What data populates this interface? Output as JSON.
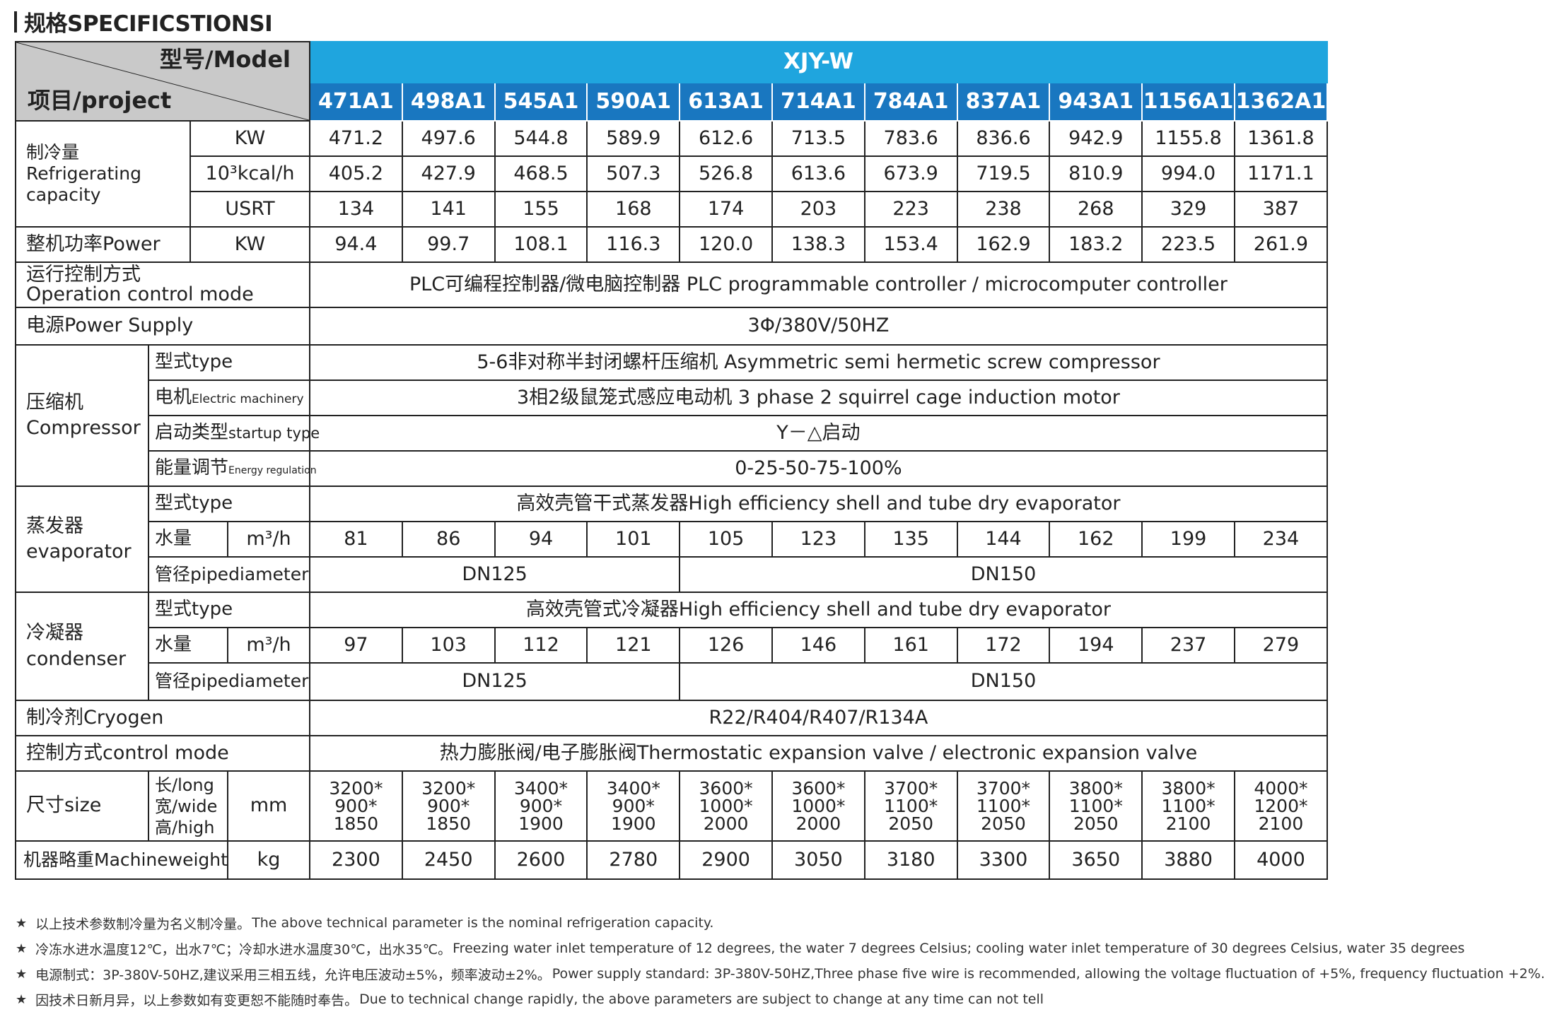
{
  "title": "规格SPECIFICSTIONSI",
  "header": {
    "model_label": "型号/Model",
    "project_label": "项目/project",
    "series": "XJY-W",
    "models": [
      "471A1",
      "498A1",
      "545A1",
      "590A1",
      "613A1",
      "714A1",
      "784A1",
      "837A1",
      "943A1",
      "1156A1",
      "1362A1"
    ]
  },
  "capacity": {
    "label_cn": "制冷量",
    "label_en": "Refrigerating capacity",
    "unit_kw": "KW",
    "unit_kcal": "10³kcal/h",
    "unit_usrt": "USRT",
    "kw": [
      "471.2",
      "497.6",
      "544.8",
      "589.9",
      "612.6",
      "713.5",
      "783.6",
      "836.6",
      "942.9",
      "1155.8",
      "1361.8"
    ],
    "kcal": [
      "405.2",
      "427.9",
      "468.5",
      "507.3",
      "526.8",
      "613.6",
      "673.9",
      "719.5",
      "810.9",
      "994.0",
      "1171.1"
    ],
    "usrt": [
      "134",
      "141",
      "155",
      "168",
      "174",
      "203",
      "223",
      "238",
      "268",
      "329",
      "387"
    ]
  },
  "power": {
    "label": "整机功率Power",
    "unit": "KW",
    "values": [
      "94.4",
      "99.7",
      "108.1",
      "116.3",
      "120.0",
      "138.3",
      "153.4",
      "162.9",
      "183.2",
      "223.5",
      "261.9"
    ]
  },
  "operation_control": {
    "label_cn": "运行控制方式",
    "label_en": "Operation control mode",
    "value": "PLC可编程控制器/微电脑控制器 PLC programmable controller / microcomputer controller"
  },
  "power_supply": {
    "label": "电源Power Supply",
    "value": "3Φ/380V/50HZ"
  },
  "compressor": {
    "label_cn": "压缩机",
    "label_en": "Compressor",
    "type_label": "型式type",
    "type_value": "5-6非对称半封闭螺杆压缩机 Asymmetric semi hermetic screw compressor",
    "motor_label_cn": "电机",
    "motor_label_en": "Electric machinery",
    "motor_value": "3相2级鼠笼式感应电动机 3 phase 2 squirrel cage induction motor",
    "startup_label_cn": "启动类型",
    "startup_label_en": "startup type",
    "startup_value": "Y－△启动",
    "energy_label_cn": "能量调节",
    "energy_label_en": "Energy regulation",
    "energy_value": "0-25-50-75-100%"
  },
  "evaporator": {
    "label_cn": "蒸发器",
    "label_en": "evaporator",
    "type_label": "型式type",
    "type_value": "高效壳管干式蒸发器High efficiency shell and tube dry evaporator",
    "water_label": "水量",
    "water_unit": "m³/h",
    "water": [
      "81",
      "86",
      "94",
      "101",
      "105",
      "123",
      "135",
      "144",
      "162",
      "199",
      "234"
    ],
    "pipe_label": "管径pipediameter",
    "pipe_a": "DN125",
    "pipe_b": "DN150"
  },
  "condenser": {
    "label_cn": "冷凝器",
    "label_en": "condenser",
    "type_label": "型式type",
    "type_value": "高效壳管式冷凝器High efficiency shell and tube dry evaporator",
    "water_label": "水量",
    "water_unit": "m³/h",
    "water": [
      "97",
      "103",
      "112",
      "121",
      "126",
      "146",
      "161",
      "172",
      "194",
      "237",
      "279"
    ],
    "pipe_label": "管径pipediameter",
    "pipe_a": "DN125",
    "pipe_b": "DN150"
  },
  "cryogen": {
    "label": "制冷剂Cryogen",
    "value": "R22/R404/R407/R134A"
  },
  "control_mode": {
    "label": "控制方式control mode",
    "value": "热力膨胀阀/电子膨胀阀Thermostatic expansion valve / electronic expansion valve"
  },
  "size": {
    "label": "尺寸size",
    "dim_long": "长/long",
    "dim_wide": "宽/wide",
    "dim_high": "高/high",
    "unit": "mm",
    "long": [
      "3200*",
      "3200*",
      "3400*",
      "3400*",
      "3600*",
      "3600*",
      "3700*",
      "3700*",
      "3800*",
      "3800*",
      "4000*"
    ],
    "wide": [
      "900*",
      "900*",
      "900*",
      "900*",
      "1000*",
      "1000*",
      "1100*",
      "1100*",
      "1100*",
      "1100*",
      "1200*"
    ],
    "high": [
      "1850",
      "1850",
      "1900",
      "1900",
      "2000",
      "2000",
      "2050",
      "2050",
      "2050",
      "2100",
      "2100"
    ]
  },
  "weight": {
    "label": "机器略重Machineweight",
    "unit": "kg",
    "values": [
      "2300",
      "2450",
      "2600",
      "2780",
      "2900",
      "3050",
      "3180",
      "3300",
      "3650",
      "3880",
      "4000"
    ]
  },
  "notes": [
    {
      "star": "★",
      "cn": "以上技术参数制冷量为名义制冷量。",
      "en": "The above technical parameter is the nominal refrigeration capacity."
    },
    {
      "star": "★",
      "cn": "冷冻水进水温度12℃，出水7℃；冷却水进水温度30℃，出水35℃。",
      "en": "Freezing water inlet temperature of 12 degrees, the water 7 degrees Celsius; cooling water inlet temperature of 30 degrees Celsius, water 35 degrees"
    },
    {
      "star": "★",
      "cn": "电源制式：3P-380V-50HZ,建议采用三相五线，允许电压波动±5%，频率波动±2%。",
      "en": "Power supply standard: 3P-380V-50HZ,Three phase five wire is recommended, allowing the voltage fluctuation of +5%, frequency fluctuation +2%."
    },
    {
      "star": "★",
      "cn": "因技术日新月异，以上参数如有变更恕不能随时奉告。",
      "en": "Due to technical change rapidly, the above parameters are subject to change at any time can not tell"
    }
  ],
  "colors": {
    "series_bg": "#1fa5de",
    "model_bg": "#1977c0",
    "header_gray": "#c9c9c9"
  }
}
